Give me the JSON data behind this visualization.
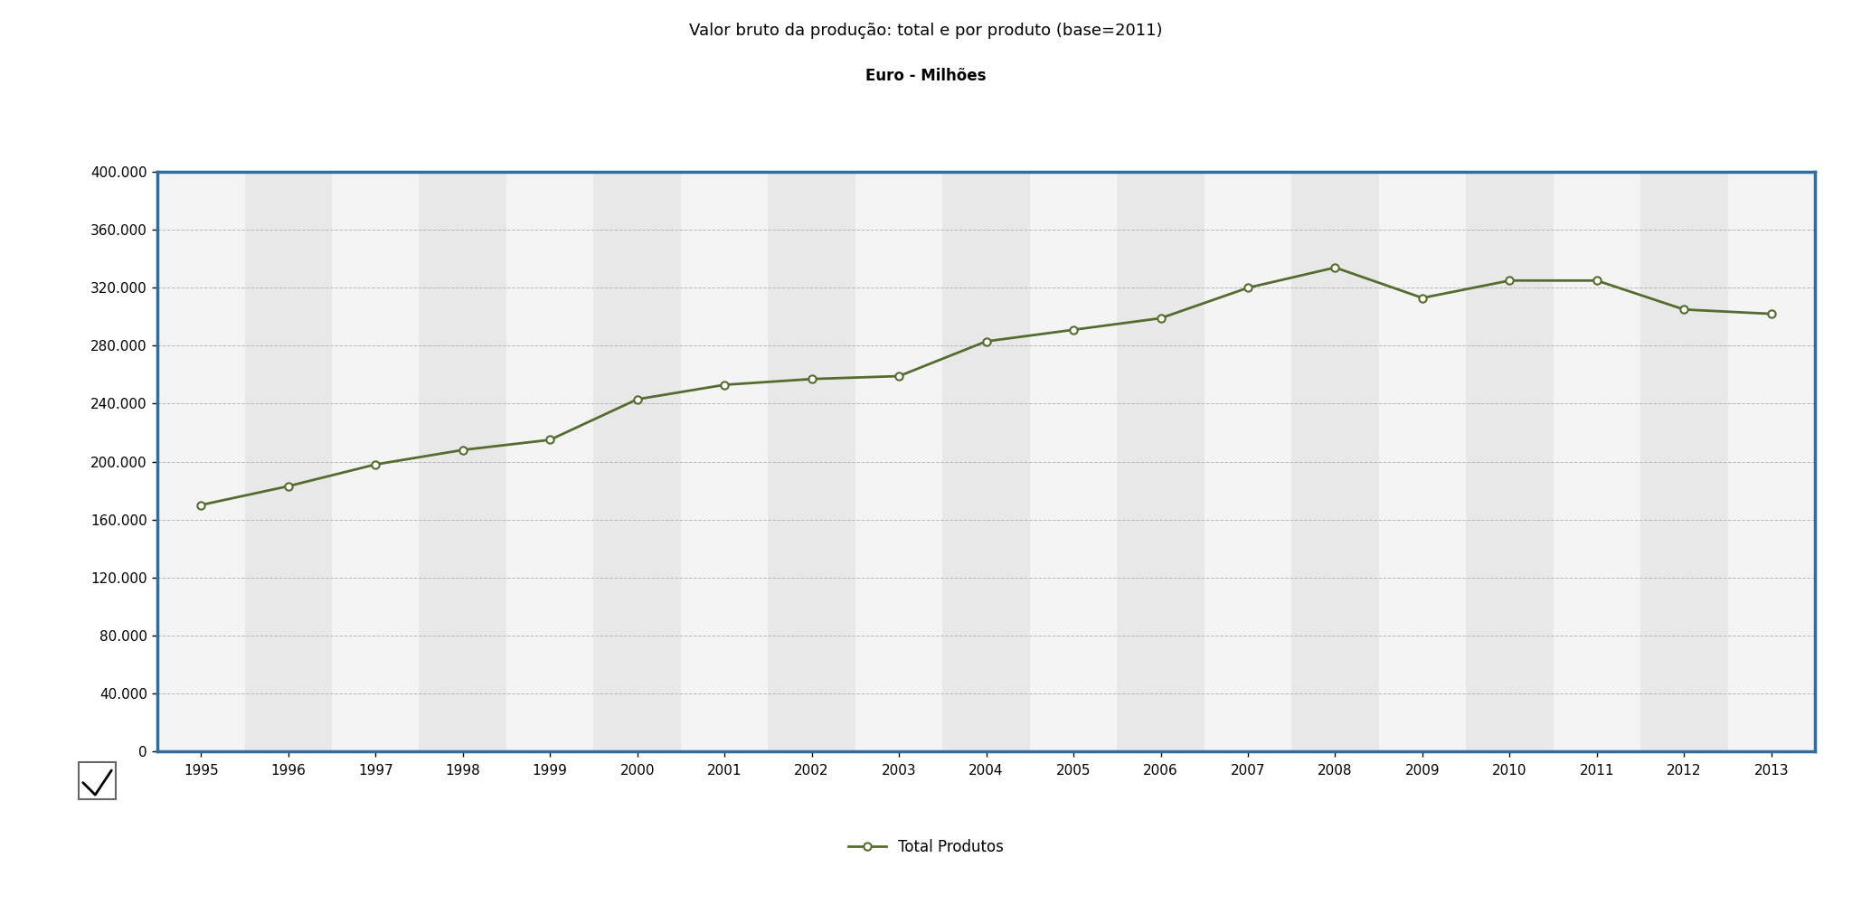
{
  "title": "Valor bruto da produção: total e por produto (base=2011)",
  "subtitle": "Euro - Milhões",
  "years": [
    1995,
    1996,
    1997,
    1998,
    1999,
    2000,
    2001,
    2002,
    2003,
    2004,
    2005,
    2006,
    2007,
    2008,
    2009,
    2010,
    2011,
    2012,
    2013
  ],
  "values": [
    170000,
    183000,
    198000,
    208000,
    215000,
    243000,
    253000,
    257000,
    259000,
    283000,
    291000,
    299000,
    320000,
    334000,
    313000,
    325000,
    325000,
    305000,
    302000
  ],
  "line_color": "#556b2f",
  "marker_size": 6,
  "ylim": [
    0,
    400000
  ],
  "yticks": [
    0,
    40000,
    80000,
    120000,
    160000,
    200000,
    240000,
    280000,
    320000,
    360000,
    400000
  ],
  "ytick_labels": [
    "0",
    "40.000",
    "80.000",
    "120.000",
    "160.000",
    "200.000",
    "240.000",
    "280.000",
    "320.000",
    "360.000",
    "400.000"
  ],
  "plot_bg_color": "#f4f4f4",
  "alt_col_color": "#e8e8e8",
  "border_color": "#2e6da4",
  "grid_color": "#aaaaaa",
  "legend_label": "Total Produtos",
  "bg_color": "#ffffff",
  "title_fontsize": 13,
  "subtitle_fontsize": 12,
  "tick_fontsize": 11
}
